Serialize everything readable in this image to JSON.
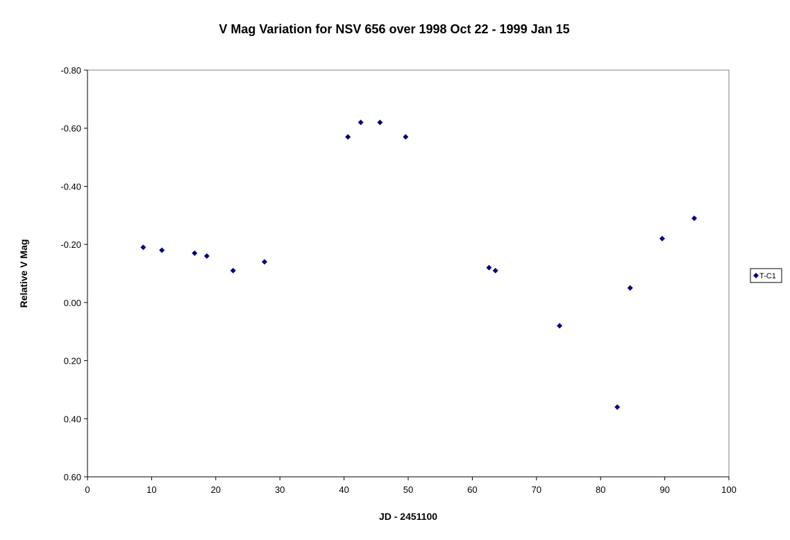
{
  "chart_data": {
    "type": "scatter",
    "title": "V Mag Variation for NSV 656 over 1998 Oct 22 - 1999 Jan 15",
    "xlabel": "JD - 2451100",
    "ylabel": "Relative V Mag",
    "xlim": [
      0,
      100
    ],
    "ylim": [
      -0.8,
      0.6
    ],
    "y_reversed": true,
    "x_ticks": [
      "0",
      "10",
      "20",
      "30",
      "40",
      "50",
      "60",
      "70",
      "80",
      "90",
      "100"
    ],
    "y_ticks": [
      "-0.80",
      "-0.60",
      "-0.40",
      "-0.20",
      "0.00",
      "0.20",
      "0.40",
      "0.60"
    ],
    "grid": false,
    "legend_position": "right",
    "series": [
      {
        "name": "T-C1",
        "color": "#000080",
        "marker": "diamond",
        "points": [
          {
            "x": 8.7,
            "y": -0.19
          },
          {
            "x": 11.6,
            "y": -0.18
          },
          {
            "x": 16.7,
            "y": -0.17
          },
          {
            "x": 18.6,
            "y": -0.16
          },
          {
            "x": 22.7,
            "y": -0.11
          },
          {
            "x": 27.6,
            "y": -0.14
          },
          {
            "x": 40.6,
            "y": -0.57
          },
          {
            "x": 42.6,
            "y": -0.62
          },
          {
            "x": 45.6,
            "y": -0.62
          },
          {
            "x": 49.6,
            "y": -0.57
          },
          {
            "x": 62.6,
            "y": -0.12
          },
          {
            "x": 63.6,
            "y": -0.11
          },
          {
            "x": 73.6,
            "y": 0.08
          },
          {
            "x": 82.6,
            "y": 0.36
          },
          {
            "x": 84.6,
            "y": -0.05
          },
          {
            "x": 89.6,
            "y": -0.22
          },
          {
            "x": 94.6,
            "y": -0.29
          }
        ]
      }
    ]
  }
}
